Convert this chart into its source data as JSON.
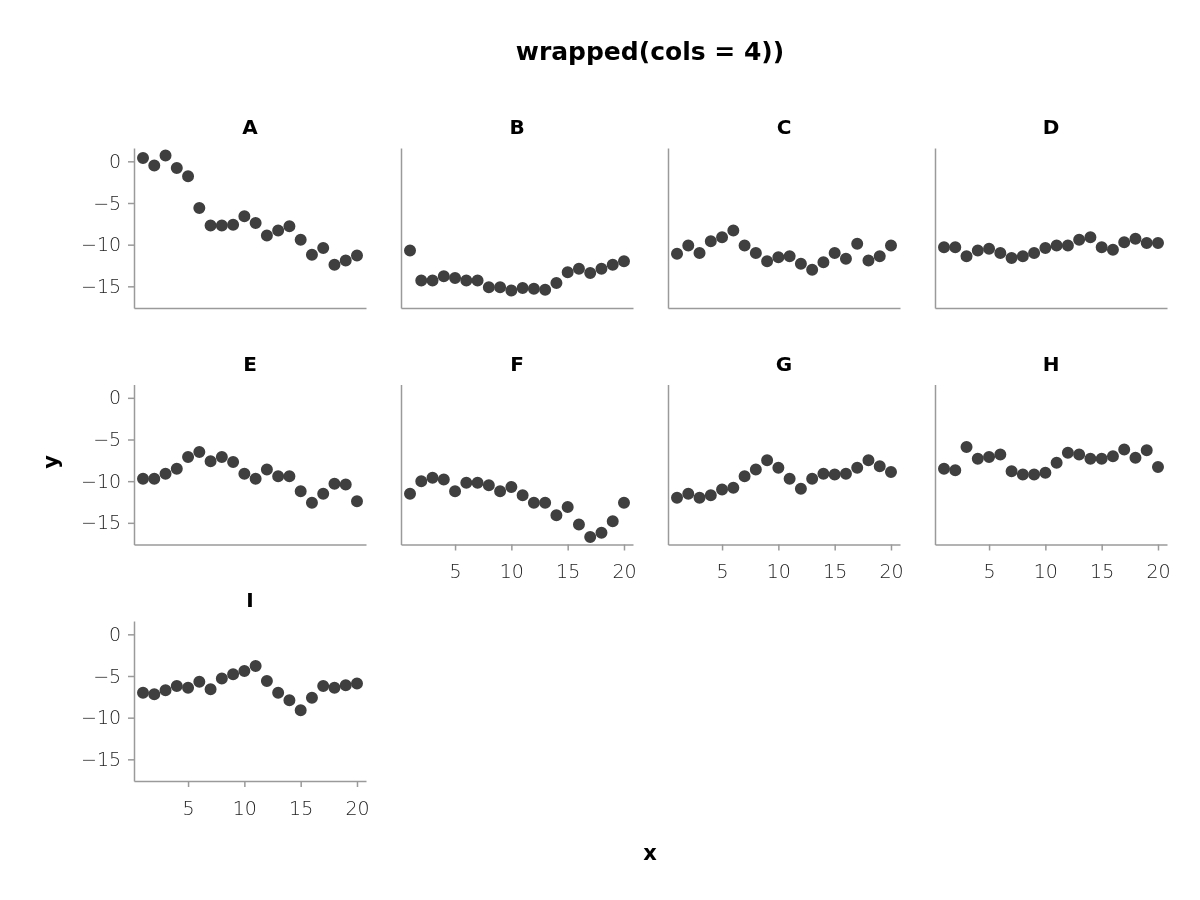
{
  "chart_data": [
    {
      "type": "other",
      "title": "wrapped(cols = 4))",
      "xlabel": "x",
      "ylabel": "y"
    },
    {
      "type": "scatter",
      "title": "A",
      "x": [
        1,
        2,
        3,
        4,
        5,
        6,
        7,
        8,
        9,
        10,
        11,
        12,
        13,
        14,
        15,
        16,
        17,
        18,
        19,
        20
      ],
      "values": [
        0.4,
        -0.5,
        0.7,
        -0.8,
        -1.8,
        -5.6,
        -7.7,
        -7.7,
        -7.6,
        -6.6,
        -7.4,
        -8.9,
        -8.3,
        -7.8,
        -9.4,
        -11.2,
        -10.4,
        -12.4,
        -11.9,
        -11.3
      ],
      "color": "#3f3f3f",
      "marker": "circle",
      "xlim": [
        0.2,
        20.8
      ],
      "xticks": [
        5,
        10,
        15,
        20
      ],
      "ylim": [
        -17.6,
        1.6
      ],
      "yticks": [
        -15,
        -10,
        -5,
        0
      ],
      "tick_labels": "y",
      "grid": false
    },
    {
      "type": "scatter",
      "title": "B",
      "x": [
        1,
        2,
        3,
        4,
        5,
        6,
        7,
        8,
        9,
        10,
        11,
        12,
        13,
        14,
        15,
        16,
        17,
        18,
        19,
        20
      ],
      "values": [
        -10.7,
        -14.3,
        -14.3,
        -13.8,
        -14.0,
        -14.3,
        -14.3,
        -15.1,
        -15.1,
        -15.5,
        -15.2,
        -15.3,
        -15.4,
        -14.6,
        -13.3,
        -12.9,
        -13.4,
        -12.9,
        -12.4,
        -12.0
      ],
      "color": "#3f3f3f",
      "marker": "circle",
      "xlim": [
        0.2,
        20.8
      ],
      "xticks": [
        5,
        10,
        15,
        20
      ],
      "ylim": [
        -17.6,
        1.6
      ],
      "yticks": [
        -15,
        -10,
        -5,
        0
      ],
      "tick_labels": false,
      "grid": false
    },
    {
      "type": "scatter",
      "title": "C",
      "x": [
        1,
        2,
        3,
        4,
        5,
        6,
        7,
        8,
        9,
        10,
        11,
        12,
        13,
        14,
        15,
        16,
        17,
        18,
        19,
        20
      ],
      "values": [
        -11.1,
        -10.1,
        -11.0,
        -9.6,
        -9.1,
        -8.3,
        -10.1,
        -11.0,
        -12.0,
        -11.5,
        -11.4,
        -12.3,
        -13.0,
        -12.1,
        -11.0,
        -11.7,
        -9.9,
        -11.9,
        -11.4,
        -10.1
      ],
      "color": "#3f3f3f",
      "marker": "circle",
      "xlim": [
        0.2,
        20.8
      ],
      "xticks": [
        5,
        10,
        15,
        20
      ],
      "ylim": [
        -17.6,
        1.6
      ],
      "yticks": [
        -15,
        -10,
        -5,
        0
      ],
      "tick_labels": false,
      "grid": false
    },
    {
      "type": "scatter",
      "title": "D",
      "x": [
        1,
        2,
        3,
        4,
        5,
        6,
        7,
        8,
        9,
        10,
        11,
        12,
        13,
        14,
        15,
        16,
        17,
        18,
        19,
        20
      ],
      "values": [
        -10.3,
        -10.3,
        -11.4,
        -10.7,
        -10.5,
        -11.0,
        -11.6,
        -11.4,
        -11.0,
        -10.4,
        -10.1,
        -10.1,
        -9.4,
        -9.1,
        -10.3,
        -10.6,
        -9.7,
        -9.3,
        -9.8,
        -9.8
      ],
      "color": "#3f3f3f",
      "marker": "circle",
      "xlim": [
        0.2,
        20.8
      ],
      "xticks": [
        5,
        10,
        15,
        20
      ],
      "ylim": [
        -17.6,
        1.6
      ],
      "yticks": [
        -15,
        -10,
        -5,
        0
      ],
      "tick_labels": false,
      "grid": false
    },
    {
      "type": "scatter",
      "title": "E",
      "x": [
        1,
        2,
        3,
        4,
        5,
        6,
        7,
        8,
        9,
        10,
        11,
        12,
        13,
        14,
        15,
        16,
        17,
        18,
        19,
        20
      ],
      "values": [
        -9.7,
        -9.7,
        -9.1,
        -8.5,
        -7.1,
        -6.5,
        -7.6,
        -7.1,
        -7.7,
        -9.1,
        -9.7,
        -8.6,
        -9.4,
        -9.4,
        -11.2,
        -12.6,
        -11.5,
        -10.3,
        -10.4,
        -12.4
      ],
      "color": "#3f3f3f",
      "marker": "circle",
      "xlim": [
        0.2,
        20.8
      ],
      "xticks": [
        5,
        10,
        15,
        20
      ],
      "ylim": [
        -17.6,
        1.6
      ],
      "yticks": [
        -15,
        -10,
        -5,
        0
      ],
      "tick_labels": "y",
      "grid": false
    },
    {
      "type": "scatter",
      "title": "F",
      "x": [
        1,
        2,
        3,
        4,
        5,
        6,
        7,
        8,
        9,
        10,
        11,
        12,
        13,
        14,
        15,
        16,
        17,
        18,
        19,
        20
      ],
      "values": [
        -11.5,
        -10.0,
        -9.6,
        -9.8,
        -11.2,
        -10.2,
        -10.2,
        -10.5,
        -11.2,
        -10.7,
        -11.7,
        -12.6,
        -12.6,
        -14.1,
        -13.1,
        -15.2,
        -16.7,
        -16.2,
        -14.8,
        -12.6
      ],
      "color": "#3f3f3f",
      "marker": "circle",
      "xlim": [
        0.2,
        20.8
      ],
      "xticks": [
        5,
        10,
        15,
        20
      ],
      "ylim": [
        -17.6,
        1.6
      ],
      "yticks": [
        -15,
        -10,
        -5,
        0
      ],
      "tick_labels": "x",
      "grid": false
    },
    {
      "type": "scatter",
      "title": "G",
      "x": [
        1,
        2,
        3,
        4,
        5,
        6,
        7,
        8,
        9,
        10,
        11,
        12,
        13,
        14,
        15,
        16,
        17,
        18,
        19,
        20
      ],
      "values": [
        -12.0,
        -11.5,
        -12.0,
        -11.7,
        -11.0,
        -10.8,
        -9.4,
        -8.6,
        -7.5,
        -8.4,
        -9.7,
        -10.9,
        -9.7,
        -9.1,
        -9.2,
        -9.1,
        -8.4,
        -7.5,
        -8.2,
        -8.9
      ],
      "color": "#3f3f3f",
      "marker": "circle",
      "xlim": [
        0.2,
        20.8
      ],
      "xticks": [
        5,
        10,
        15,
        20
      ],
      "ylim": [
        -17.6,
        1.6
      ],
      "yticks": [
        -15,
        -10,
        -5,
        0
      ],
      "tick_labels": "x",
      "grid": false
    },
    {
      "type": "scatter",
      "title": "H",
      "x": [
        1,
        2,
        3,
        4,
        5,
        6,
        7,
        8,
        9,
        10,
        11,
        12,
        13,
        14,
        15,
        16,
        17,
        18,
        19,
        20
      ],
      "values": [
        -8.5,
        -8.7,
        -5.9,
        -7.3,
        -7.1,
        -6.8,
        -8.8,
        -9.2,
        -9.2,
        -9.0,
        -7.8,
        -6.6,
        -6.8,
        -7.3,
        -7.3,
        -7.0,
        -6.2,
        -7.2,
        -6.3,
        -8.3
      ],
      "color": "#3f3f3f",
      "marker": "circle",
      "xlim": [
        0.2,
        20.8
      ],
      "xticks": [
        5,
        10,
        15,
        20
      ],
      "ylim": [
        -17.6,
        1.6
      ],
      "yticks": [
        -15,
        -10,
        -5,
        0
      ],
      "tick_labels": "x",
      "grid": false
    },
    {
      "type": "scatter",
      "title": "I",
      "x": [
        1,
        2,
        3,
        4,
        5,
        6,
        7,
        8,
        9,
        10,
        11,
        12,
        13,
        14,
        15,
        16,
        17,
        18,
        19,
        20
      ],
      "values": [
        -7.0,
        -7.2,
        -6.7,
        -6.2,
        -6.4,
        -5.7,
        -6.6,
        -5.3,
        -4.8,
        -4.4,
        -3.8,
        -5.6,
        -7.0,
        -7.9,
        -9.1,
        -7.6,
        -6.2,
        -6.4,
        -6.1,
        -5.9
      ],
      "color": "#3f3f3f",
      "marker": "circle",
      "xlim": [
        0.2,
        20.8
      ],
      "xticks": [
        5,
        10,
        15,
        20
      ],
      "ylim": [
        -17.6,
        1.6
      ],
      "yticks": [
        -15,
        -10,
        -5,
        0
      ],
      "grid": false
    }
  ]
}
